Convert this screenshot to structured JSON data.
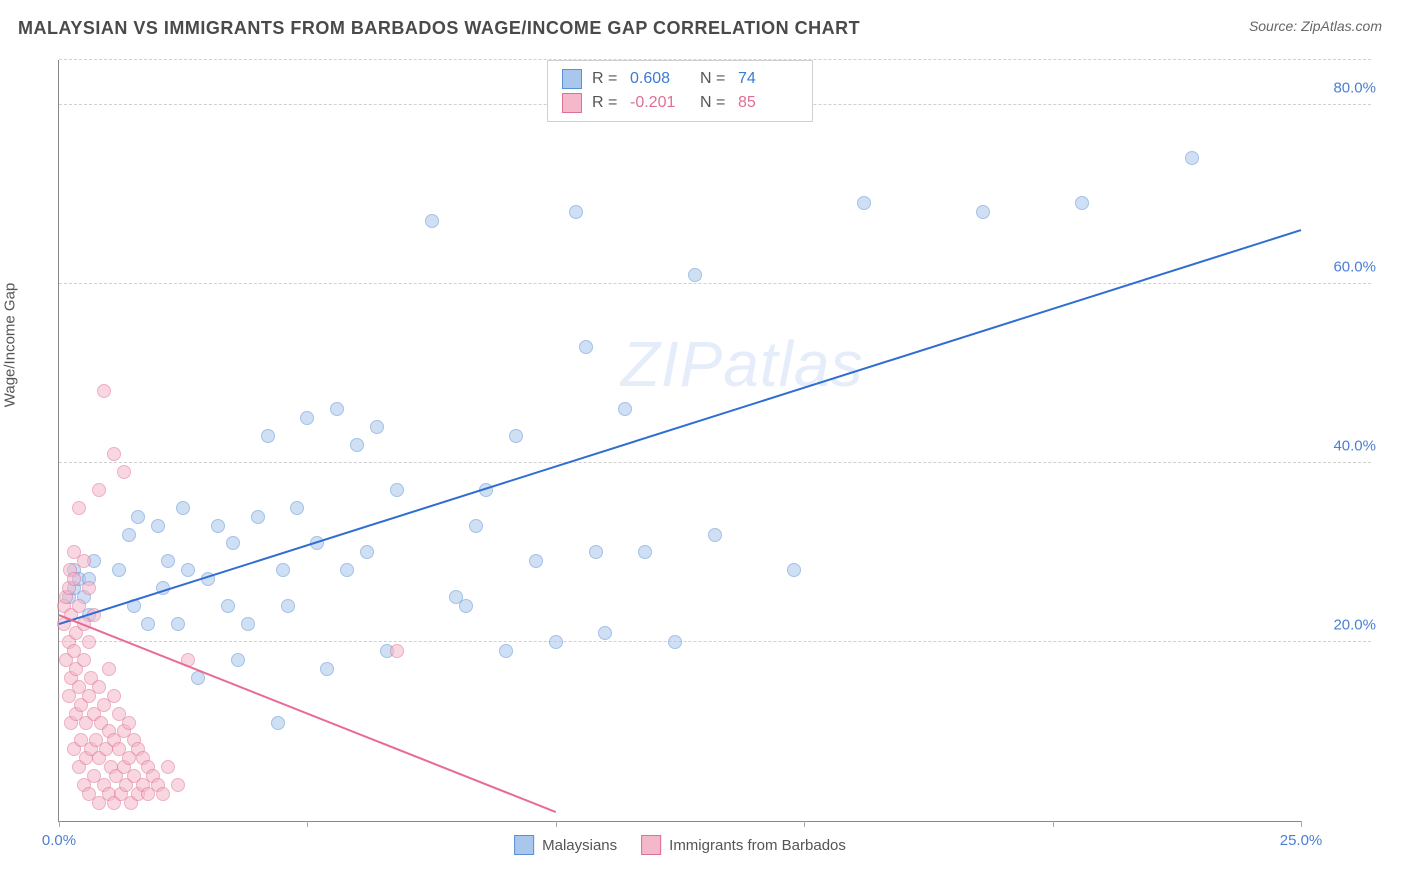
{
  "header": {
    "title": "MALAYSIAN VS IMMIGRANTS FROM BARBADOS WAGE/INCOME GAP CORRELATION CHART",
    "source": "Source: ZipAtlas.com"
  },
  "chart": {
    "type": "scatter",
    "ylabel": "Wage/Income Gap",
    "watermark_main": "ZIP",
    "watermark_sub": "atlas",
    "xlim": [
      0,
      25
    ],
    "ylim": [
      0,
      85
    ],
    "xticks": [
      {
        "v": 0,
        "label": "0.0%"
      },
      {
        "v": 5,
        "label": ""
      },
      {
        "v": 10,
        "label": ""
      },
      {
        "v": 15,
        "label": ""
      },
      {
        "v": 20,
        "label": ""
      },
      {
        "v": 25,
        "label": "25.0%"
      }
    ],
    "yticks": [
      {
        "v": 20,
        "label": "20.0%"
      },
      {
        "v": 40,
        "label": "40.0%"
      },
      {
        "v": 60,
        "label": "60.0%"
      },
      {
        "v": 80,
        "label": "80.0%"
      }
    ],
    "grid_color": "#d8d8d8",
    "background_color": "#ffffff",
    "marker_radius": 7,
    "marker_opacity": 0.55,
    "series": [
      {
        "name": "Malaysians",
        "color_fill": "#a9c6ec",
        "color_stroke": "#5b8fd6",
        "stat_color": "#3b7bd6",
        "R": "0.608",
        "N": "74",
        "trend": {
          "x1": 0,
          "y1": 22,
          "x2": 25,
          "y2": 66,
          "color": "#2f6ed1",
          "width": 2
        },
        "points": [
          [
            0.2,
            25
          ],
          [
            0.3,
            26
          ],
          [
            0.3,
            28
          ],
          [
            0.4,
            27
          ],
          [
            0.5,
            25
          ],
          [
            0.6,
            27
          ],
          [
            0.6,
            23
          ],
          [
            0.7,
            29
          ],
          [
            1.2,
            28
          ],
          [
            1.4,
            32
          ],
          [
            1.5,
            24
          ],
          [
            1.6,
            34
          ],
          [
            1.8,
            22
          ],
          [
            2.0,
            33
          ],
          [
            2.1,
            26
          ],
          [
            2.2,
            29
          ],
          [
            2.4,
            22
          ],
          [
            2.5,
            35
          ],
          [
            2.6,
            28
          ],
          [
            2.8,
            16
          ],
          [
            3.0,
            27
          ],
          [
            3.2,
            33
          ],
          [
            3.4,
            24
          ],
          [
            3.5,
            31
          ],
          [
            3.6,
            18
          ],
          [
            3.8,
            22
          ],
          [
            4.0,
            34
          ],
          [
            4.2,
            43
          ],
          [
            4.4,
            11
          ],
          [
            4.5,
            28
          ],
          [
            4.6,
            24
          ],
          [
            4.8,
            35
          ],
          [
            5.0,
            45
          ],
          [
            5.2,
            31
          ],
          [
            5.4,
            17
          ],
          [
            5.6,
            46
          ],
          [
            5.8,
            28
          ],
          [
            6.0,
            42
          ],
          [
            6.2,
            30
          ],
          [
            6.4,
            44
          ],
          [
            6.6,
            19
          ],
          [
            6.8,
            37
          ],
          [
            7.5,
            67
          ],
          [
            8.0,
            25
          ],
          [
            8.2,
            24
          ],
          [
            8.4,
            33
          ],
          [
            8.6,
            37
          ],
          [
            9.0,
            19
          ],
          [
            9.2,
            43
          ],
          [
            9.6,
            29
          ],
          [
            10.0,
            20
          ],
          [
            10.4,
            68
          ],
          [
            10.6,
            53
          ],
          [
            10.8,
            30
          ],
          [
            11.0,
            21
          ],
          [
            11.4,
            46
          ],
          [
            11.8,
            30
          ],
          [
            12.4,
            20
          ],
          [
            12.8,
            61
          ],
          [
            13.2,
            32
          ],
          [
            14.8,
            28
          ],
          [
            16.2,
            69
          ],
          [
            18.6,
            68
          ],
          [
            20.6,
            69
          ],
          [
            22.8,
            74
          ]
        ]
      },
      {
        "name": "Immigrants from Barbados",
        "color_fill": "#f4b8ca",
        "color_stroke": "#e06f94",
        "stat_color": "#e06f94",
        "R": "-0.201",
        "N": "85",
        "trend": {
          "x1": 0,
          "y1": 23,
          "x2": 10,
          "y2": 1,
          "color": "#e86b94",
          "width": 2
        },
        "points": [
          [
            0.1,
            22
          ],
          [
            0.1,
            24
          ],
          [
            0.15,
            18
          ],
          [
            0.15,
            25
          ],
          [
            0.2,
            14
          ],
          [
            0.2,
            20
          ],
          [
            0.2,
            26
          ],
          [
            0.22,
            28
          ],
          [
            0.25,
            11
          ],
          [
            0.25,
            16
          ],
          [
            0.25,
            23
          ],
          [
            0.3,
            8
          ],
          [
            0.3,
            19
          ],
          [
            0.3,
            27
          ],
          [
            0.3,
            30
          ],
          [
            0.35,
            12
          ],
          [
            0.35,
            17
          ],
          [
            0.35,
            21
          ],
          [
            0.4,
            6
          ],
          [
            0.4,
            15
          ],
          [
            0.4,
            24
          ],
          [
            0.4,
            35
          ],
          [
            0.45,
            9
          ],
          [
            0.45,
            13
          ],
          [
            0.5,
            4
          ],
          [
            0.5,
            18
          ],
          [
            0.5,
            22
          ],
          [
            0.5,
            29
          ],
          [
            0.55,
            7
          ],
          [
            0.55,
            11
          ],
          [
            0.6,
            3
          ],
          [
            0.6,
            14
          ],
          [
            0.6,
            20
          ],
          [
            0.6,
            26
          ],
          [
            0.65,
            8
          ],
          [
            0.65,
            16
          ],
          [
            0.7,
            5
          ],
          [
            0.7,
            12
          ],
          [
            0.7,
            23
          ],
          [
            0.75,
            9
          ],
          [
            0.8,
            2
          ],
          [
            0.8,
            7
          ],
          [
            0.8,
            15
          ],
          [
            0.8,
            37
          ],
          [
            0.85,
            11
          ],
          [
            0.9,
            4
          ],
          [
            0.9,
            13
          ],
          [
            0.9,
            48
          ],
          [
            0.95,
            8
          ],
          [
            1.0,
            3
          ],
          [
            1.0,
            10
          ],
          [
            1.0,
            17
          ],
          [
            1.05,
            6
          ],
          [
            1.1,
            2
          ],
          [
            1.1,
            9
          ],
          [
            1.1,
            14
          ],
          [
            1.1,
            41
          ],
          [
            1.15,
            5
          ],
          [
            1.2,
            8
          ],
          [
            1.2,
            12
          ],
          [
            1.25,
            3
          ],
          [
            1.3,
            6
          ],
          [
            1.3,
            10
          ],
          [
            1.3,
            39
          ],
          [
            1.35,
            4
          ],
          [
            1.4,
            7
          ],
          [
            1.4,
            11
          ],
          [
            1.45,
            2
          ],
          [
            1.5,
            5
          ],
          [
            1.5,
            9
          ],
          [
            1.6,
            3
          ],
          [
            1.6,
            8
          ],
          [
            1.7,
            4
          ],
          [
            1.7,
            7
          ],
          [
            1.8,
            3
          ],
          [
            1.8,
            6
          ],
          [
            1.9,
            5
          ],
          [
            2.0,
            4
          ],
          [
            2.1,
            3
          ],
          [
            2.2,
            6
          ],
          [
            2.4,
            4
          ],
          [
            2.6,
            18
          ],
          [
            6.8,
            19
          ]
        ]
      }
    ],
    "bottom_legend": [
      {
        "label": "Malaysians",
        "fill": "#a9c6ec",
        "stroke": "#5b8fd6"
      },
      {
        "label": "Immigrants from Barbados",
        "fill": "#f4b8ca",
        "stroke": "#e06f94"
      }
    ]
  }
}
